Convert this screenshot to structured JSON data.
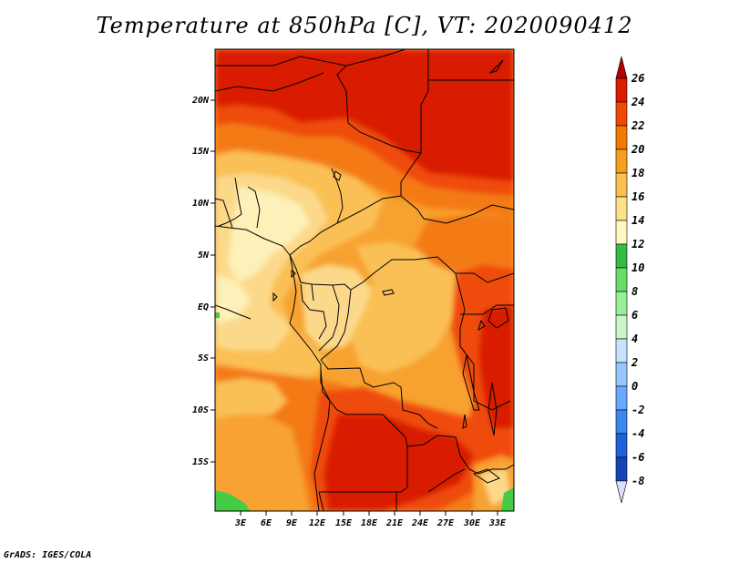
{
  "title": "Temperature at 850hPa [C], VT: 2020090412",
  "footer": "GrADS: IGES/COLA",
  "lat_labels": [
    "20N",
    "15N",
    "10N",
    "5N",
    "EQ",
    "5S",
    "10S",
    "15S"
  ],
  "lon_labels": [
    "3E",
    "6E",
    "9E",
    "12E",
    "15E",
    "18E",
    "21E",
    "24E",
    "27E",
    "30E",
    "33E"
  ],
  "colorbar": {
    "labels": [
      "26",
      "24",
      "22",
      "20",
      "18",
      "16",
      "14",
      "12",
      "10",
      "8",
      "6",
      "4",
      "2",
      "0",
      "-2",
      "-4",
      "-6",
      "-8"
    ],
    "colors": [
      "#b00000",
      "#dc1c00",
      "#ee4a00",
      "#f27a00",
      "#f6a020",
      "#fac050",
      "#fde08a",
      "#fff8c0",
      "#33bb44",
      "#66dd66",
      "#99ee99",
      "#ccf5cc",
      "#c4e4ff",
      "#96c8ff",
      "#6aa8ff",
      "#3c88f0",
      "#2060d8",
      "#1444b8",
      "#0a2c98",
      "#041470"
    ]
  },
  "map_colors": {
    "c26": "#d91a00",
    "c24": "#ef4c0c",
    "c22": "#f47a18",
    "c20": "#f7a230",
    "c18": "#fac055",
    "c16": "#fcd98a",
    "c14": "#fdf0b8",
    "green": "#44cc44",
    "border": "#000000"
  }
}
